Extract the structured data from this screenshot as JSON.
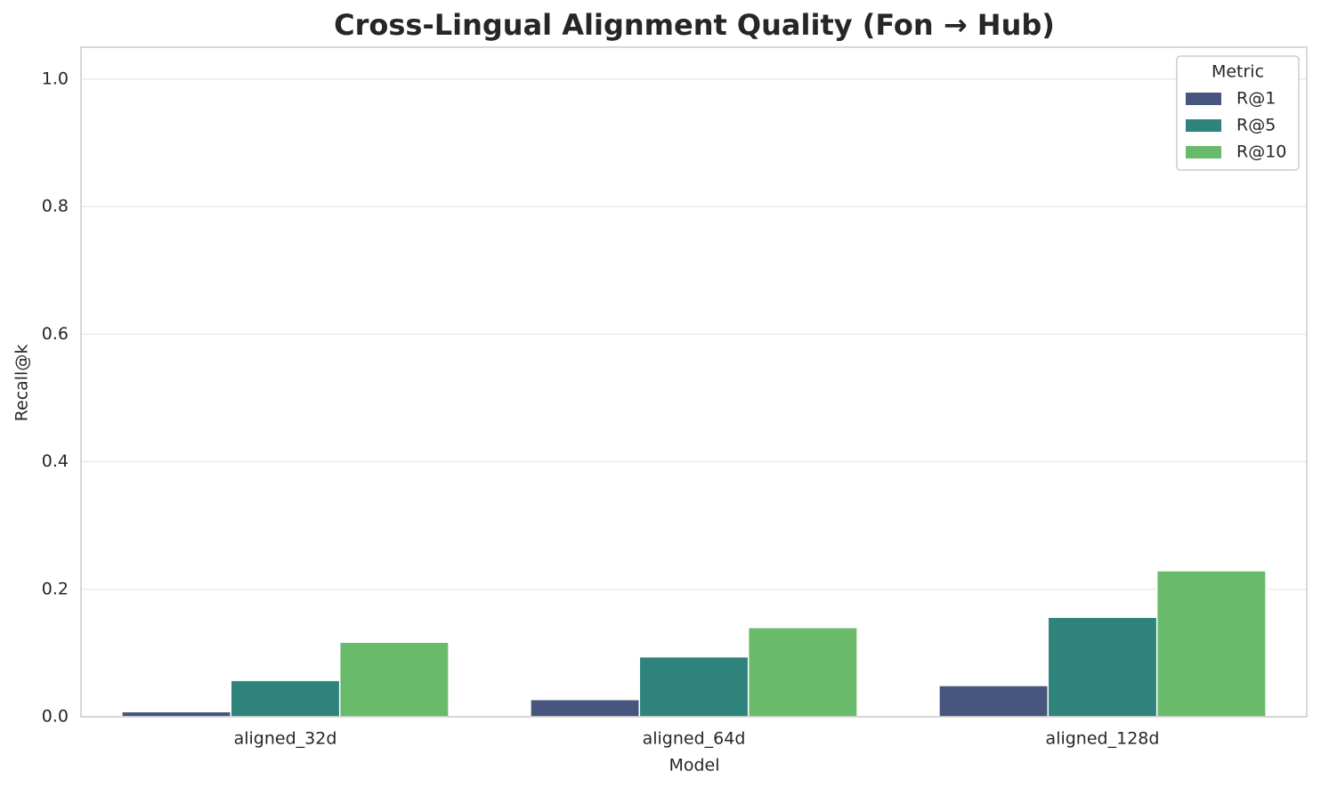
{
  "chart_data": {
    "type": "bar",
    "title": "Cross-Lingual Alignment Quality (Fon → Hub)",
    "x_label": "Model",
    "y_label": "Recall@k",
    "categories": [
      "aligned_32d",
      "aligned_64d",
      "aligned_128d"
    ],
    "series": [
      {
        "name": "R@1",
        "color": "#46567f",
        "values": [
          0.008,
          0.027,
          0.049
        ]
      },
      {
        "name": "R@5",
        "color": "#2e837d",
        "values": [
          0.057,
          0.094,
          0.156
        ]
      },
      {
        "name": "R@10",
        "color": "#69ba6a",
        "values": [
          0.117,
          0.14,
          0.229
        ]
      }
    ],
    "ylim": [
      0,
      1.05
    ],
    "yticks": [
      {
        "value": 0,
        "label": "0.0"
      },
      0.2,
      0.4,
      0.6,
      0.8,
      {
        "value": 1,
        "label": "1.0"
      }
    ],
    "grid": true,
    "legend_title": "Metric",
    "legend_position": "upper-right"
  }
}
